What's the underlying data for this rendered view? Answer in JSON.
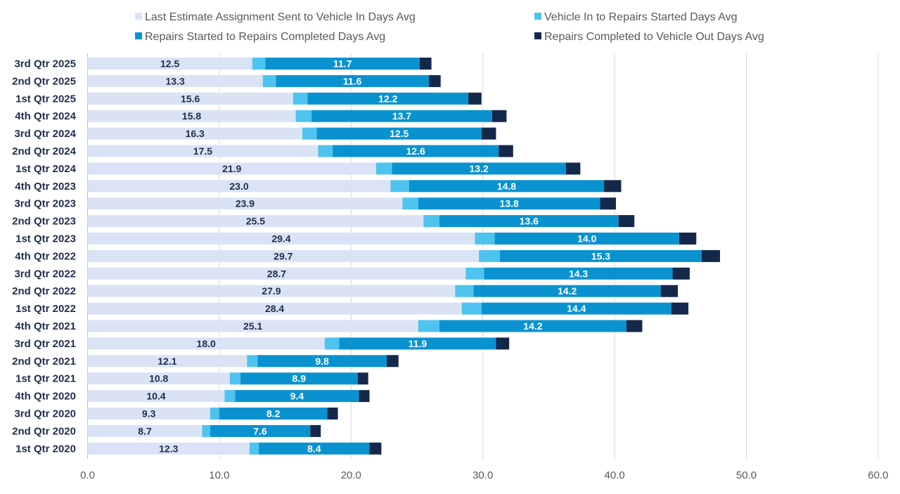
{
  "chart_data": {
    "type": "bar",
    "orientation": "horizontal",
    "stacked": true,
    "title": "",
    "xlabel": "",
    "ylabel": "",
    "xlim": [
      0,
      60
    ],
    "xticks": [
      0,
      10,
      20,
      30,
      40,
      50,
      60
    ],
    "xtick_labels": [
      "0.0",
      "10.0",
      "20.0",
      "30.0",
      "40.0",
      "50.0",
      "60.0"
    ],
    "grid": "vertical",
    "legend_position": "top",
    "categories": [
      "3rd Qtr 2025",
      "2nd Qtr 2025",
      "1st Qtr 2025",
      "4th Qtr 2024",
      "3rd Qtr 2024",
      "2nd Qtr 2024",
      "1st Qtr 2024",
      "4th Qtr 2023",
      "3rd Qtr 2023",
      "2nd Qtr 2023",
      "1st Qtr 2023",
      "4th Qtr 2022",
      "3rd Qtr 2022",
      "2nd Qtr 2022",
      "1st Qtr 2022",
      "4th Qtr 2021",
      "3rd Qtr 2021",
      "2nd Qtr 2021",
      "1st Qtr 2021",
      "4th Qtr 2020",
      "3rd Qtr 2020",
      "2nd Qtr 2020",
      "1st Qtr 2020"
    ],
    "series": [
      {
        "name": "Last Estimate Assignment Sent to Vehicle In Days Avg",
        "color": "#dae3f5",
        "label_color": "#1f2d4d",
        "show_labels": true,
        "values": [
          12.5,
          13.3,
          15.6,
          15.8,
          16.3,
          17.5,
          21.9,
          23.0,
          23.9,
          25.5,
          29.4,
          29.7,
          28.7,
          27.9,
          28.4,
          25.1,
          18.0,
          12.1,
          10.8,
          10.4,
          9.3,
          8.7,
          12.3
        ],
        "labels": [
          "12.5",
          "13.3",
          "15.6",
          "15.8",
          "16.3",
          "17.5",
          "21.9",
          "23.0",
          "23.9",
          "25.5",
          "29.4",
          "29.7",
          "28.7",
          "27.9",
          "28.4",
          "25.1",
          "18.0",
          "12.1",
          "10.8",
          "10.4",
          "9.3",
          "8.7",
          "12.3"
        ]
      },
      {
        "name": "Vehicle In to Repairs Started Days Avg",
        "color": "#4fc3ef",
        "show_labels": false,
        "values": [
          1.0,
          1.0,
          1.1,
          1.2,
          1.1,
          1.1,
          1.2,
          1.4,
          1.2,
          1.2,
          1.5,
          1.6,
          1.4,
          1.4,
          1.5,
          1.6,
          1.1,
          0.8,
          0.8,
          0.8,
          0.7,
          0.6,
          0.7
        ]
      },
      {
        "name": "Repairs Started to Repairs Completed Days Avg",
        "color": "#0a92d0",
        "label_color": "#ffffff",
        "show_labels": true,
        "values": [
          11.7,
          11.6,
          12.2,
          13.7,
          12.5,
          12.6,
          13.2,
          14.8,
          13.8,
          13.6,
          14.0,
          15.3,
          14.3,
          14.2,
          14.4,
          14.2,
          11.9,
          9.8,
          8.9,
          9.4,
          8.2,
          7.6,
          8.4
        ],
        "labels": [
          "11.7",
          "11.6",
          "12.2",
          "13.7",
          "12.5",
          "12.6",
          "13.2",
          "14.8",
          "13.8",
          "13.6",
          "14.0",
          "15.3",
          "14.3",
          "14.2",
          "14.4",
          "14.2",
          "11.9",
          "9.8",
          "8.9",
          "9.4",
          "8.2",
          "7.6",
          "8.4"
        ]
      },
      {
        "name": "Repairs Completed to Vehicle Out Days Avg",
        "color": "#14284b",
        "show_labels": false,
        "values": [
          0.9,
          0.9,
          1.0,
          1.1,
          1.1,
          1.1,
          1.1,
          1.3,
          1.2,
          1.2,
          1.3,
          1.4,
          1.3,
          1.3,
          1.3,
          1.2,
          1.0,
          0.9,
          0.8,
          0.8,
          0.8,
          0.8,
          0.9
        ]
      }
    ]
  }
}
